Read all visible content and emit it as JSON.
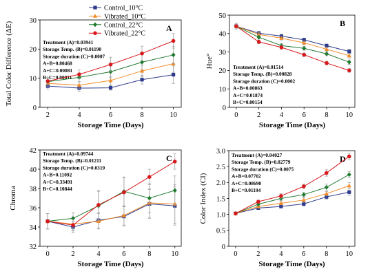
{
  "legend": {
    "entries": [
      {
        "name": "Control_10°C",
        "color": "#2e3a8c",
        "marker": "square"
      },
      {
        "name": "Vibrated_10°C",
        "color": "#f28c28",
        "marker": "triangle"
      },
      {
        "name": "Control_22°C",
        "color": "#1f7a2f",
        "marker": "diamond"
      },
      {
        "name": "Vibrated_22°C",
        "color": "#d7191c",
        "marker": "circle"
      }
    ]
  },
  "chart_data": [
    {
      "type": "line",
      "panel_label": "A",
      "ylabel": "Total Color Difference (ΔE)",
      "xlabel": "Storage Time (Days)",
      "xlim": [
        1.5,
        10.5
      ],
      "ylim": [
        0,
        30
      ],
      "x_ticks": [
        2,
        4,
        6,
        8,
        10
      ],
      "y_ticks": [
        0,
        10,
        20,
        30
      ],
      "grid": false,
      "x": [
        2,
        4,
        6,
        8,
        10
      ],
      "series": [
        {
          "name": "Control_10°C",
          "values": [
            7.3,
            6.6,
            6.7,
            9.5,
            11.2
          ],
          "errors": [
            1.0,
            1.2,
            0.8,
            1.5,
            3.0
          ]
        },
        {
          "name": "Vibrated_10°C",
          "values": [
            8.2,
            7.6,
            9.2,
            12.5,
            15.0
          ],
          "errors": [
            1.0,
            1.2,
            1.5,
            2.0,
            3.0
          ]
        },
        {
          "name": "Control_22°C",
          "values": [
            8.8,
            10.3,
            12.2,
            15.5,
            18.0
          ],
          "errors": [
            1.0,
            1.5,
            2.0,
            2.5,
            3.0
          ]
        },
        {
          "name": "Vibrated_22°C",
          "values": [
            9.0,
            11.3,
            14.7,
            18.5,
            22.8
          ],
          "errors": [
            1.2,
            1.5,
            2.5,
            2.5,
            2.5
          ]
        }
      ],
      "annotations": [
        "Treatment (A)=0.03941",
        "Storage Temp. (B)=0.01190",
        "Storage duration (C)=0.0007",
        "A+B=0.80468",
        "A+C=0.00081",
        "B+C=0.00011"
      ]
    },
    {
      "type": "line",
      "panel_label": "B",
      "ylabel": "Hue°",
      "xlabel": "Storage Time (Days)",
      "xlim": [
        -0.6,
        10.5
      ],
      "ylim": [
        0,
        50
      ],
      "x_ticks": [
        0,
        2,
        4,
        6,
        8,
        10
      ],
      "y_ticks": [
        0,
        10,
        20,
        30,
        40,
        50
      ],
      "grid": false,
      "x": [
        0,
        2,
        4,
        6,
        8,
        10
      ],
      "series": [
        {
          "name": "Control_10°C",
          "values": [
            44.0,
            40.2,
            38.6,
            36.6,
            33.4,
            30.3
          ],
          "errors": [
            1.5,
            1.0,
            1.0,
            1.0,
            1.0,
            1.2
          ]
        },
        {
          "name": "Vibrated_10°C",
          "values": [
            44.0,
            39.5,
            37.5,
            35.0,
            31.5,
            28.0
          ],
          "errors": [
            1.5,
            1.0,
            1.0,
            1.0,
            1.0,
            1.2
          ]
        },
        {
          "name": "Control_22°C",
          "values": [
            44.0,
            38.0,
            33.5,
            32.0,
            29.0,
            24.5
          ],
          "errors": [
            1.5,
            1.0,
            1.0,
            1.0,
            1.0,
            1.2
          ]
        },
        {
          "name": "Vibrated_22°C",
          "values": [
            44.0,
            35.5,
            32.5,
            28.5,
            24.0,
            20.0
          ],
          "errors": [
            1.5,
            1.0,
            1.0,
            1.0,
            1.0,
            1.0
          ]
        }
      ],
      "annotations": [
        "Treatment (A)=0.01514",
        "Storage Temp. (B)=0.00828",
        "Storage duration (C)=0.0002",
        "A+B=0.00863",
        "A+C=0.01874",
        "B+C=0.00154"
      ]
    },
    {
      "type": "line",
      "panel_label": "C",
      "ylabel": "Chroma",
      "xlabel": "Storage Time (Days)",
      "xlim": [
        -0.6,
        10.5
      ],
      "ylim": [
        32,
        42
      ],
      "x_ticks": [
        0,
        2,
        4,
        6,
        8,
        10
      ],
      "y_ticks": [
        32,
        34,
        36,
        38,
        40,
        42
      ],
      "grid": false,
      "x": [
        0,
        2,
        4,
        6,
        8,
        10
      ],
      "series": [
        {
          "name": "Control_10°C",
          "values": [
            34.6,
            34.0,
            34.7,
            35.1,
            36.4,
            36.2
          ],
          "errors": [
            0.8,
            0.6,
            0.8,
            1.0,
            1.5,
            2.0
          ]
        },
        {
          "name": "Vibrated_10°C",
          "values": [
            34.6,
            34.3,
            34.6,
            35.2,
            36.5,
            36.4
          ],
          "errors": [
            0.8,
            0.6,
            0.8,
            1.0,
            1.5,
            2.0
          ]
        },
        {
          "name": "Control_22°C",
          "values": [
            34.6,
            34.9,
            36.2,
            37.7,
            37.0,
            37.8
          ],
          "errors": [
            0.8,
            0.6,
            1.5,
            1.5,
            1.5,
            1.5
          ]
        },
        {
          "name": "Vibrated_22°C",
          "values": [
            34.6,
            34.2,
            36.3,
            37.6,
            39.2,
            40.8
          ],
          "errors": [
            0.8,
            0.6,
            1.5,
            1.5,
            0.8,
            0.8
          ]
        }
      ],
      "annotations": [
        "Treatment (A)=0.09744",
        "Storage Temp. (B)=0.01211",
        "Storage duration (C)=0.0319",
        "A+B=0.11092",
        "A+C=0.33491",
        "B+C=0.10844"
      ]
    },
    {
      "type": "line",
      "panel_label": "D",
      "ylabel": "Color Index (CI)",
      "xlabel": "Storage Time (Days)",
      "xlim": [
        -0.6,
        10.5
      ],
      "ylim": [
        0,
        3.0
      ],
      "x_ticks": [
        0,
        2,
        4,
        6,
        8,
        10
      ],
      "y_ticks": [
        0,
        0.5,
        1.0,
        1.5,
        2.0,
        2.5,
        3.0
      ],
      "y_tick_labels": [
        "0",
        "0.5",
        "1.0",
        "1.5",
        "2.0",
        "2.5",
        "3.0"
      ],
      "grid": false,
      "x": [
        0,
        2,
        4,
        6,
        8,
        10
      ],
      "series": [
        {
          "name": "Control_10°C",
          "values": [
            1.03,
            1.2,
            1.25,
            1.33,
            1.55,
            1.7
          ],
          "errors": [
            0.05,
            0.05,
            0.05,
            0.07,
            0.07,
            0.1
          ]
        },
        {
          "name": "Vibrated_10°C",
          "values": [
            1.03,
            1.25,
            1.35,
            1.45,
            1.65,
            1.9
          ],
          "errors": [
            0.05,
            0.05,
            0.05,
            0.07,
            0.07,
            0.1
          ]
        },
        {
          "name": "Control_22°C",
          "values": [
            1.03,
            1.32,
            1.5,
            1.62,
            1.85,
            2.25
          ],
          "errors": [
            0.05,
            0.05,
            0.07,
            0.07,
            0.1,
            0.1
          ]
        },
        {
          "name": "Vibrated_22°C",
          "values": [
            1.03,
            1.4,
            1.58,
            1.88,
            2.3,
            2.82
          ],
          "errors": [
            0.05,
            0.05,
            0.07,
            0.07,
            0.1,
            0.1
          ]
        }
      ],
      "annotations": [
        "Treatment (A)=0.04027",
        "Storage Temp. (B)=0.02779",
        "Storage duration (C)=0.0075",
        "A+B=0.07702",
        "A+C=0.08690",
        "B+C=0.01194"
      ]
    }
  ]
}
